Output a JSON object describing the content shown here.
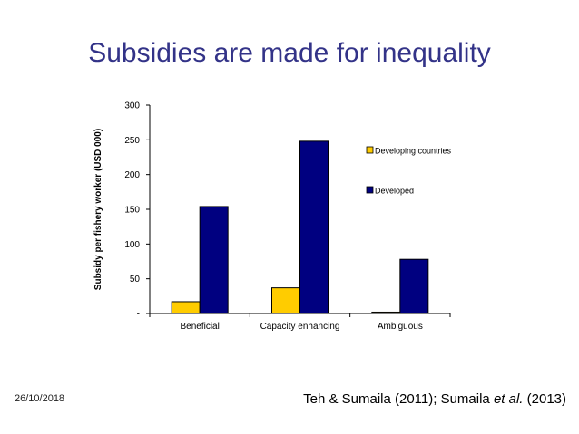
{
  "slide": {
    "title": "Subsidies are made for inequality",
    "date": "26/10/2018",
    "citation_part1": "Teh & Sumaila (2011); Sumaila ",
    "citation_italic": "et al.",
    "citation_part2": " (2013)"
  },
  "chart_data": {
    "type": "bar",
    "title": "",
    "xlabel": "",
    "ylabel": "Subsidy per fishery worker (USD 000)",
    "categories": [
      "Beneficial",
      "Capacity enhancing",
      "Ambiguous"
    ],
    "series": [
      {
        "name": "Developing countries",
        "values": [
          17,
          37,
          2
        ],
        "color": "#ffcc00"
      },
      {
        "name": "Developed",
        "values": [
          154,
          248,
          78
        ],
        "color": "#000080"
      }
    ],
    "ylim": [
      0,
      300
    ],
    "yticks": [
      0,
      50,
      100,
      150,
      200,
      250,
      300
    ],
    "ytick_labels": [
      "-",
      "50",
      "100",
      "150",
      "200",
      "250",
      "300"
    ],
    "grid": false,
    "legend_position": "right"
  }
}
